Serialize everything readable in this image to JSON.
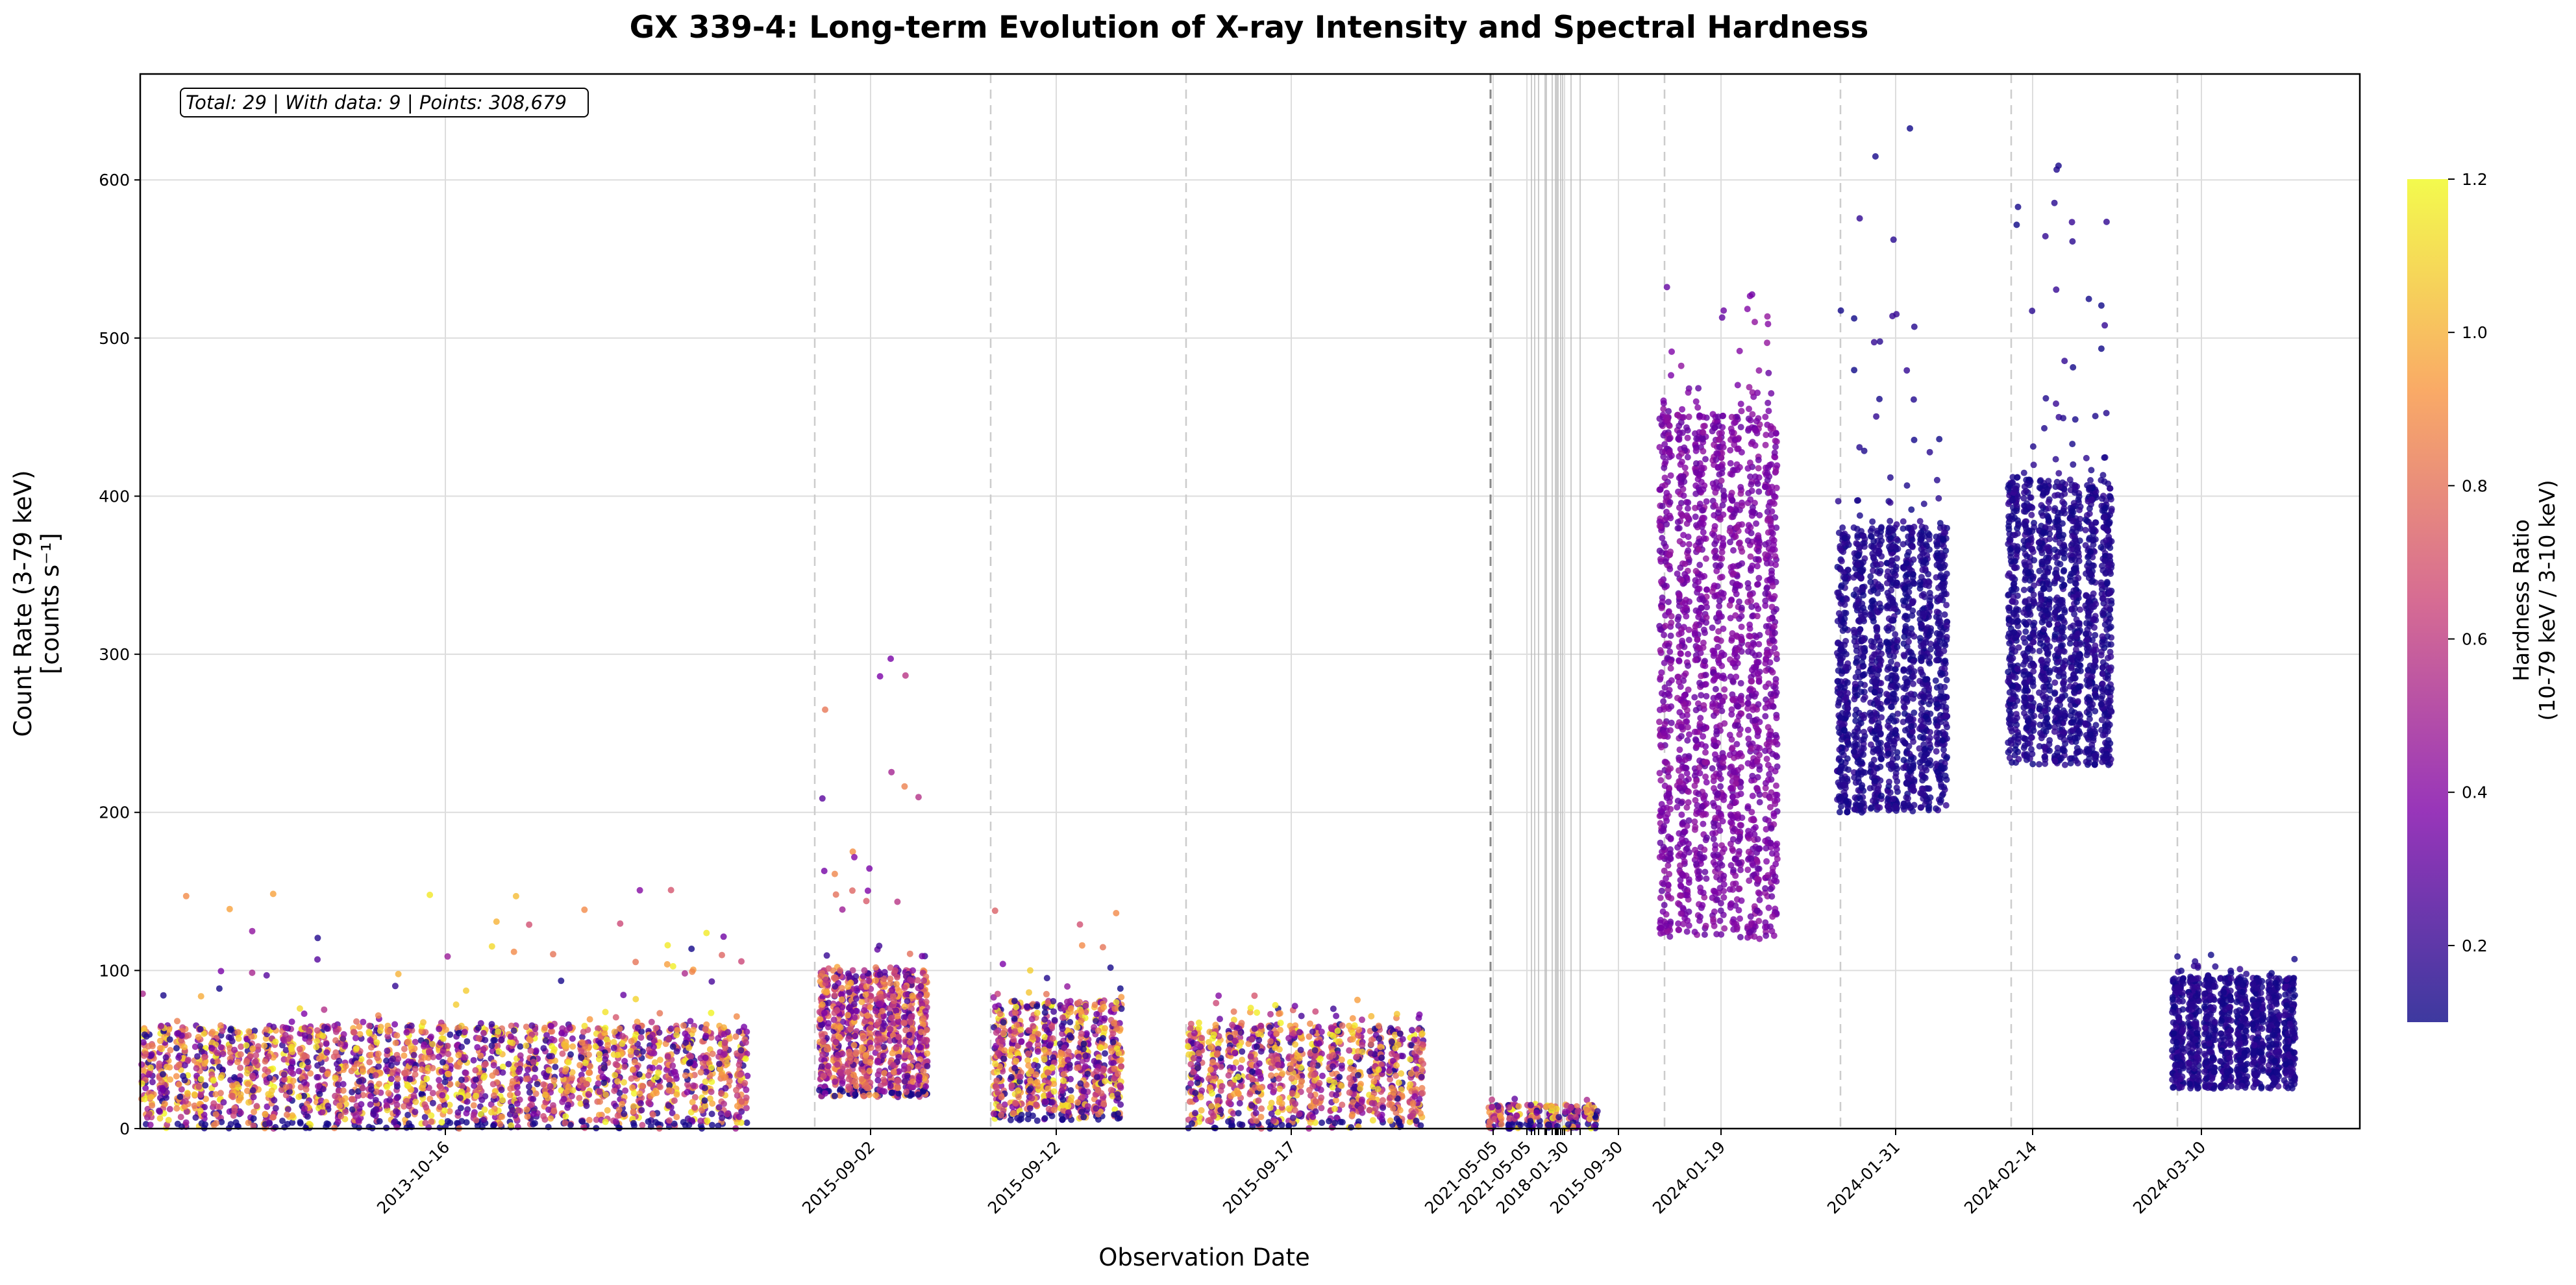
{
  "chart_data": {
    "type": "scatter",
    "title": "GX 339-4: Long-term Evolution of X-ray Intensity and Spectral Hardness",
    "xlabel": "Observation Date",
    "ylabel": [
      "Count Rate (3-79 keV)",
      "[counts s⁻¹]"
    ],
    "ylim": [
      0,
      667
    ],
    "yticks": [
      0,
      100,
      200,
      300,
      400,
      500,
      600
    ],
    "xtick_labels": [
      "2013-10-16",
      "2015-09-02",
      "2015-09-12",
      "2015-09-17",
      "2021-05-05",
      "2021-05-05",
      "2018-01-30",
      "2015-09-30",
      "2024-01-19",
      "2024-01-31",
      "2024-02-14",
      "2024-03-10"
    ],
    "grid": true,
    "annotation": "Total: 29 | With data: 9 | Points: 308,679",
    "colorbar": {
      "label": [
        "Hardness Ratio",
        "(10-79 keV / 3-10 keV)"
      ],
      "range": [
        0.1,
        1.2
      ],
      "ticks": [
        0.2,
        0.4,
        0.6,
        0.8,
        1.0,
        1.2
      ],
      "colormap": "plasma"
    },
    "groups": [
      {
        "count_rate_range": [
          0,
          65
        ],
        "outlier_max": 155,
        "hardness_range": [
          0.1,
          1.2
        ],
        "strips": 35
      },
      {
        "count_rate_range": [
          20,
          100
        ],
        "outlier_max": 302,
        "hardness_range": [
          0.2,
          1.0
        ],
        "strips": 8
      },
      {
        "count_rate_range": [
          5,
          80
        ],
        "outlier_max": 149,
        "hardness_range": [
          0.1,
          1.2
        ],
        "strips": 8
      },
      {
        "count_rate_range": [
          0,
          65
        ],
        "outlier_max": 85,
        "hardness_range": [
          0.1,
          1.2
        ],
        "strips": 12
      },
      {
        "count_rate_range": [
          0,
          15
        ],
        "outlier_max": 20,
        "hardness_range": [
          0.1,
          1.2
        ],
        "strips": 6
      },
      {
        "count_rate_range": [
          120,
          450
        ],
        "outlier_max": 533,
        "hardness_range": [
          0.3,
          0.45
        ],
        "strips": 7
      },
      {
        "count_rate_range": [
          200,
          380
        ],
        "outlier_max": 635,
        "hardness_range": [
          0.1,
          0.2
        ],
        "strips": 7
      },
      {
        "count_rate_range": [
          230,
          410
        ],
        "outlier_max": 623,
        "hardness_range": [
          0.1,
          0.2
        ],
        "strips": 7
      },
      {
        "count_rate_range": [
          25,
          95
        ],
        "outlier_max": 110,
        "hardness_range": [
          0.1,
          0.2
        ],
        "strips": 8
      }
    ]
  }
}
